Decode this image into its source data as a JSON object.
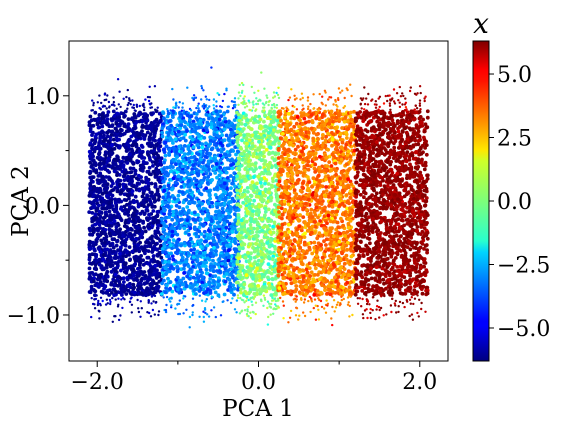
{
  "chart_data": {
    "type": "scatter",
    "title": "",
    "xlabel": "PCA 1",
    "ylabel": "PCA 2",
    "xlim": [
      -2.35,
      2.35
    ],
    "ylim": [
      -1.42,
      1.5
    ],
    "x_major_ticks": [
      -2.0,
      0.0,
      2.0
    ],
    "x_minor_ticks": [
      -1.0,
      1.0
    ],
    "y_major_ticks": [
      -1.0,
      0.0,
      1.0
    ],
    "y_minor_ticks": [
      -0.5,
      0.5
    ],
    "x_tick_labels": [
      "−2.0",
      "0.0",
      "2.0"
    ],
    "y_tick_labels": [
      "−1.0",
      "0.0",
      "1.0"
    ],
    "grid": false,
    "colorbar": {
      "title": "x",
      "colormap": "jet",
      "range": [
        -6.3,
        6.3
      ],
      "ticks": [
        -5.0,
        -2.5,
        0.0,
        2.5,
        5.0
      ],
      "tick_labels": [
        "−5.0",
        "−2.5",
        "0.0",
        "2.5",
        "5.0"
      ]
    },
    "bands": [
      {
        "x_center": -1.65,
        "half_width": 0.45,
        "x_color": -6.0
      },
      {
        "x_center": -0.72,
        "half_width": 0.48,
        "x_color": -3.2
      },
      {
        "x_center": 0.0,
        "half_width": 0.27,
        "x_color": 0.0
      },
      {
        "x_center": 0.72,
        "half_width": 0.48,
        "x_color": 3.2
      },
      {
        "x_center": 1.65,
        "half_width": 0.45,
        "x_color": 6.0
      }
    ],
    "band_y_range": [
      -0.82,
      0.86
    ]
  }
}
